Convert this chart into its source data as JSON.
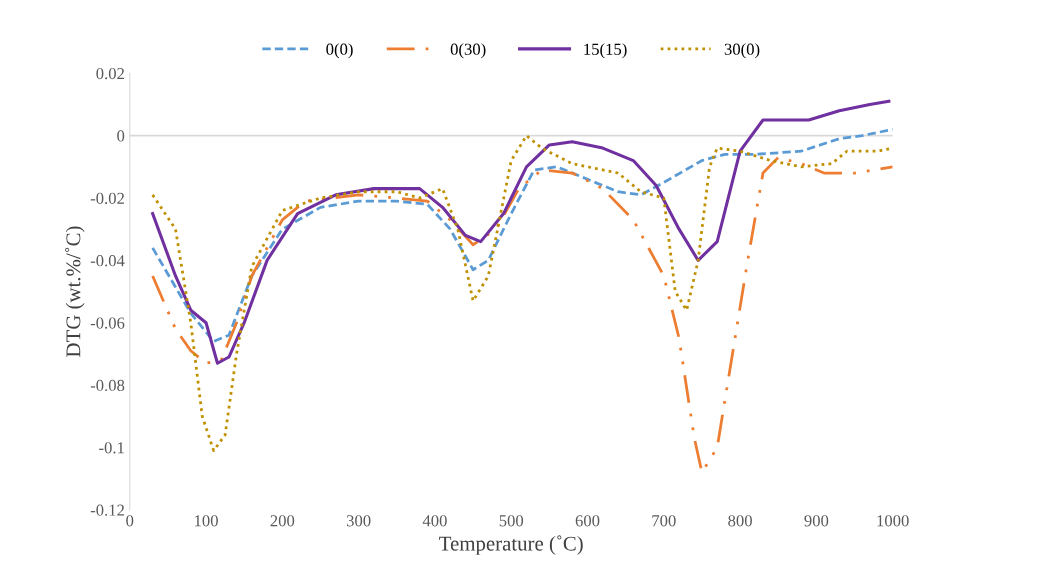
{
  "chart_data": {
    "type": "line",
    "xlabel": "Temperature (˚C)",
    "ylabel": "DTG (wt.%/˚C)",
    "xlim": [
      0,
      1000
    ],
    "xticks": [
      0,
      100,
      200,
      300,
      400,
      500,
      600,
      700,
      800,
      900,
      1000
    ],
    "ylim": [
      -0.12,
      0.02
    ],
    "yticks": [
      {
        "value": -0.12,
        "label": "-0.12"
      },
      {
        "value": -0.1,
        "label": "-0.1"
      },
      {
        "value": -0.08,
        "label": "-0.08"
      },
      {
        "value": -0.06,
        "label": "-0.06"
      },
      {
        "value": -0.04,
        "label": "-0.04"
      },
      {
        "value": -0.02,
        "label": "-0.02"
      },
      {
        "value": 0,
        "label": "0"
      },
      {
        "value": 0.02,
        "label": "0.02"
      }
    ],
    "grid": false,
    "legend": "top",
    "marker": "none",
    "ref_lines": [
      {
        "axis": "y",
        "value": 0,
        "color": "#d9d9d9"
      }
    ],
    "series": [
      {
        "name": "0(0)",
        "color": "#5b9bd5",
        "line_style": "dashed",
        "x": [
          30,
          80,
          110,
          130,
          160,
          200,
          250,
          300,
          350,
          390,
          420,
          450,
          470,
          500,
          530,
          560,
          600,
          640,
          670,
          700,
          750,
          780,
          820,
          880,
          930,
          960,
          1000
        ],
        "values": [
          -0.036,
          -0.057,
          -0.066,
          -0.064,
          -0.045,
          -0.03,
          -0.023,
          -0.021,
          -0.021,
          -0.022,
          -0.03,
          -0.043,
          -0.04,
          -0.025,
          -0.011,
          -0.01,
          -0.014,
          -0.018,
          -0.019,
          -0.015,
          -0.008,
          -0.006,
          -0.006,
          -0.005,
          -0.001,
          0.0,
          0.002
        ]
      },
      {
        "name": "0(30)",
        "color": "#ed7d31",
        "line_style": "dashdotdot",
        "x": [
          30,
          60,
          80,
          100,
          120,
          140,
          160,
          200,
          230,
          300,
          350,
          390,
          420,
          450,
          480,
          510,
          540,
          580,
          620,
          660,
          700,
          720,
          740,
          750,
          770,
          790,
          810,
          830,
          850,
          880,
          910,
          950,
          1000
        ],
        "values": [
          -0.045,
          -0.062,
          -0.069,
          -0.073,
          -0.072,
          -0.06,
          -0.045,
          -0.027,
          -0.021,
          -0.019,
          -0.02,
          -0.021,
          -0.027,
          -0.035,
          -0.03,
          -0.017,
          -0.011,
          -0.012,
          -0.017,
          -0.027,
          -0.045,
          -0.065,
          -0.097,
          -0.108,
          -0.1,
          -0.07,
          -0.04,
          -0.012,
          -0.007,
          -0.009,
          -0.012,
          -0.012,
          -0.01
        ]
      },
      {
        "name": "15(15)",
        "color": "#7030a0",
        "line_style": "solid",
        "x": [
          30,
          60,
          80,
          100,
          115,
          130,
          150,
          180,
          220,
          270,
          320,
          380,
          410,
          440,
          460,
          490,
          520,
          550,
          580,
          620,
          660,
          690,
          720,
          745,
          770,
          800,
          830,
          860,
          890,
          930,
          970,
          995
        ],
        "values": [
          -0.025,
          -0.045,
          -0.056,
          -0.06,
          -0.073,
          -0.071,
          -0.06,
          -0.04,
          -0.025,
          -0.019,
          -0.017,
          -0.017,
          -0.023,
          -0.032,
          -0.034,
          -0.025,
          -0.01,
          -0.003,
          -0.002,
          -0.004,
          -0.008,
          -0.016,
          -0.03,
          -0.04,
          -0.034,
          -0.005,
          0.005,
          0.005,
          0.005,
          0.008,
          0.01,
          0.011
        ]
      },
      {
        "name": "30(0)",
        "color": "#bf9000",
        "line_style": "dotted",
        "x": [
          30,
          60,
          80,
          95,
          110,
          125,
          140,
          160,
          200,
          250,
          300,
          350,
          380,
          410,
          430,
          450,
          470,
          500,
          520,
          540,
          580,
          640,
          670,
          700,
          715,
          730,
          745,
          760,
          770,
          800,
          840,
          880,
          920,
          940,
          980,
          1000
        ],
        "values": [
          -0.019,
          -0.03,
          -0.06,
          -0.09,
          -0.101,
          -0.096,
          -0.07,
          -0.042,
          -0.024,
          -0.02,
          -0.018,
          -0.018,
          -0.02,
          -0.017,
          -0.03,
          -0.053,
          -0.045,
          -0.008,
          0.0,
          -0.004,
          -0.009,
          -0.012,
          -0.018,
          -0.02,
          -0.05,
          -0.056,
          -0.04,
          -0.01,
          -0.004,
          -0.005,
          -0.008,
          -0.01,
          -0.009,
          -0.005,
          -0.005,
          -0.004
        ]
      }
    ]
  }
}
